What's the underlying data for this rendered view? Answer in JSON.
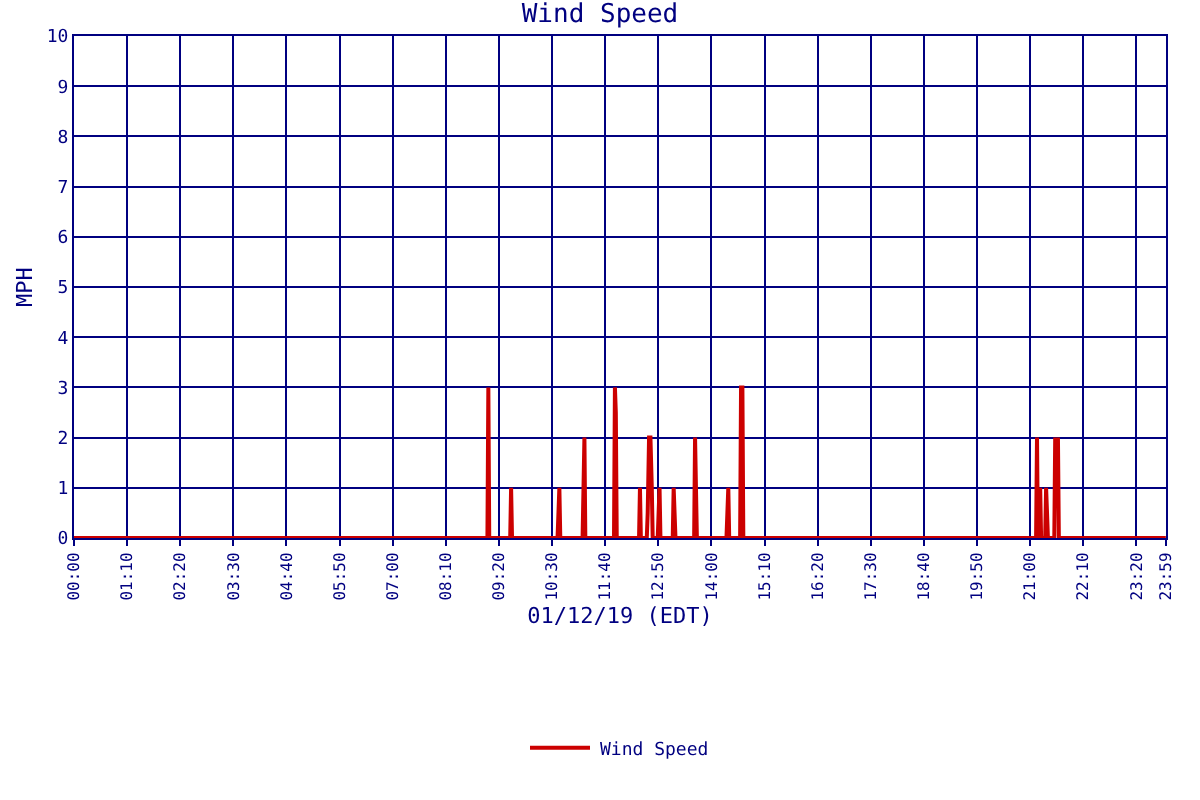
{
  "chart_data": {
    "type": "line",
    "title": "Wind Speed",
    "xlabel": "01/12/19 (EDT)",
    "ylabel": "MPH",
    "xlim": [
      0,
      23.9833
    ],
    "ylim": [
      0,
      10
    ],
    "xticks": [
      {
        "value": 0,
        "label": "00:00"
      },
      {
        "value": 1.1667,
        "label": "01:10"
      },
      {
        "value": 2.3333,
        "label": "02:20"
      },
      {
        "value": 3.5,
        "label": "03:30"
      },
      {
        "value": 4.6667,
        "label": "04:40"
      },
      {
        "value": 5.8333,
        "label": "05:50"
      },
      {
        "value": 7,
        "label": "07:00"
      },
      {
        "value": 8.1667,
        "label": "08:10"
      },
      {
        "value": 9.3333,
        "label": "09:20"
      },
      {
        "value": 10.5,
        "label": "10:30"
      },
      {
        "value": 11.6667,
        "label": "11:40"
      },
      {
        "value": 12.8333,
        "label": "12:50"
      },
      {
        "value": 14,
        "label": "14:00"
      },
      {
        "value": 15.1667,
        "label": "15:10"
      },
      {
        "value": 16.3333,
        "label": "16:20"
      },
      {
        "value": 17.5,
        "label": "17:30"
      },
      {
        "value": 18.6667,
        "label": "18:40"
      },
      {
        "value": 19.8333,
        "label": "19:50"
      },
      {
        "value": 21,
        "label": "21:00"
      },
      {
        "value": 22.1667,
        "label": "22:10"
      },
      {
        "value": 23.3333,
        "label": "23:20"
      },
      {
        "value": 23.9833,
        "label": "23:59"
      }
    ],
    "yticks": [
      0,
      1,
      2,
      3,
      4,
      5,
      6,
      7,
      8,
      9,
      10
    ],
    "grid": true,
    "legend": "bottom",
    "marker": "none",
    "line_style": "solid",
    "series": [
      {
        "name": "Wind Speed",
        "color": "#cc0000",
        "x": [
          0,
          9.08,
          9.1,
          9.12,
          9.58,
          9.6,
          9.62,
          10.62,
          10.64,
          10.66,
          10.68,
          11.17,
          11.19,
          11.21,
          11.23,
          11.86,
          11.88,
          11.9,
          11.92,
          12.41,
          12.43,
          12.45,
          12.58,
          12.6,
          12.63,
          12.66,
          12.69,
          12.71,
          12.82,
          12.84,
          12.86,
          12.88,
          13.15,
          13.17,
          13.19,
          13.21,
          13.62,
          13.64,
          13.66,
          13.68,
          14.33,
          14.35,
          14.37,
          14.39,
          14.63,
          14.65,
          14.68,
          14.7,
          21.13,
          21.15,
          21.17,
          21.2,
          21.22,
          21.24,
          21.33,
          21.35,
          21.37,
          21.39,
          21.53,
          21.55,
          21.58,
          21.61,
          21.63,
          23.98
        ],
        "values": [
          0,
          0,
          3,
          0,
          0,
          1,
          0,
          0,
          0.5,
          1,
          0,
          0,
          1,
          2,
          0,
          0,
          3,
          2.5,
          0,
          0,
          1,
          0,
          0,
          0.5,
          2,
          2,
          1,
          0,
          0,
          0.5,
          1,
          0,
          0,
          1,
          0.5,
          0,
          0,
          2,
          1,
          0,
          0,
          0.5,
          1,
          0,
          0,
          3,
          3,
          0,
          0,
          2,
          0,
          0,
          1,
          0,
          0,
          1,
          0.5,
          0,
          0,
          2,
          1,
          2,
          0,
          0
        ]
      }
    ]
  }
}
